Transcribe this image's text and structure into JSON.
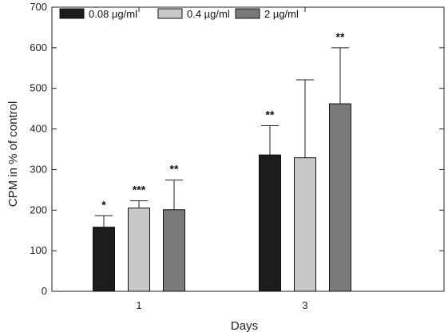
{
  "chart_data": {
    "type": "bar",
    "title": "",
    "xlabel": "Days",
    "ylabel": "CPM in % of control",
    "categories": [
      "1",
      "3"
    ],
    "ylim": [
      0,
      700
    ],
    "yticks": [
      0,
      100,
      200,
      300,
      400,
      500,
      600,
      700
    ],
    "legend_position": "top-left",
    "grid": false,
    "series": [
      {
        "name": "0.08 µg/ml",
        "color": "#1c1c1c",
        "values": [
          158,
          336
        ],
        "errors": [
          28,
          72
        ],
        "significance": [
          "*",
          "**"
        ]
      },
      {
        "name": "0.4 µg/ml",
        "color": "#c8c8c8",
        "values": [
          205,
          329
        ],
        "errors": [
          18,
          192
        ],
        "significance": [
          "***",
          ""
        ]
      },
      {
        "name": "2 µg/ml",
        "color": "#7a7a7a",
        "values": [
          201,
          462
        ],
        "errors": [
          73,
          138
        ],
        "significance": [
          "**",
          "**"
        ]
      }
    ]
  }
}
